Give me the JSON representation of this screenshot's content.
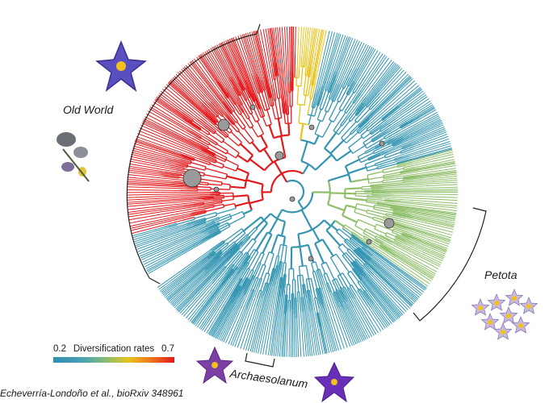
{
  "clades": {
    "old_world": "Old World",
    "petota": "Petota",
    "archaesolanum": "Archaesolanum"
  },
  "legend": {
    "min": "0.2",
    "title": "Diversification rates",
    "max": "0.7",
    "colors": [
      "#2e8cb0",
      "#8fbf6a",
      "#e8c31c",
      "#ef7a1c",
      "#e31a1c"
    ]
  },
  "citation": "Echeverría-Londoño et al., bioRxiv 348961",
  "icons": [
    "purple-star-flower-icon",
    "dried-plant-icon",
    "potato-flower-cluster-icon",
    "purple-flower-icon",
    "violet-flower-icon"
  ]
}
